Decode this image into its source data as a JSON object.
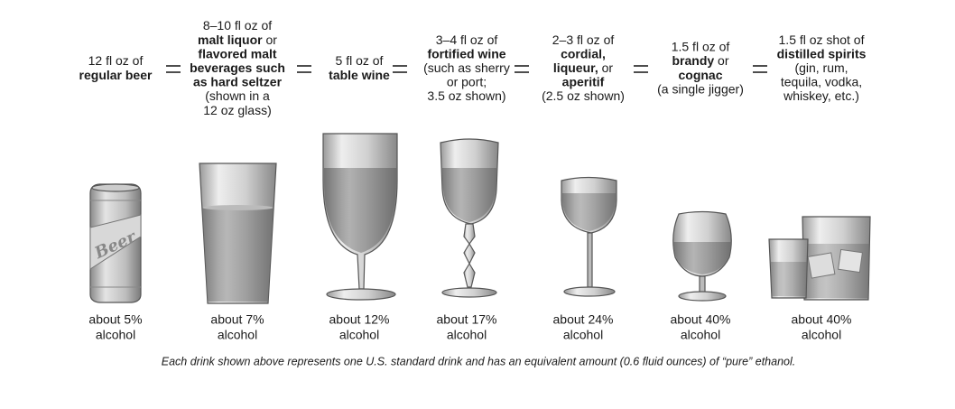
{
  "drinks": [
    {
      "description": [
        [
          {
            "text": "12 fl oz of",
            "bold": false
          }
        ],
        [
          {
            "text": "regular beer",
            "bold": true
          }
        ]
      ],
      "can_label": "Beer",
      "strength": [
        "about 5%",
        "alcohol"
      ]
    },
    {
      "description": [
        [
          {
            "text": "8–10 fl oz of",
            "bold": false
          }
        ],
        [
          {
            "text": "malt liquor",
            "bold": true
          },
          {
            "text": " or",
            "bold": false
          }
        ],
        [
          {
            "text": "flavored malt",
            "bold": true
          }
        ],
        [
          {
            "text": "beverages such",
            "bold": true
          }
        ],
        [
          {
            "text": "as hard seltzer",
            "bold": true
          }
        ],
        [
          {
            "text": "(shown in a",
            "bold": false
          }
        ],
        [
          {
            "text": "12 oz glass)",
            "bold": false
          }
        ]
      ],
      "strength": [
        "about 7%",
        "alcohol"
      ]
    },
    {
      "description": [
        [
          {
            "text": "5 fl oz of",
            "bold": false
          }
        ],
        [
          {
            "text": "table wine",
            "bold": true
          }
        ]
      ],
      "strength": [
        "about 12%",
        "alcohol"
      ]
    },
    {
      "description": [
        [
          {
            "text": "3–4 fl oz of",
            "bold": false
          }
        ],
        [
          {
            "text": "fortified wine",
            "bold": true
          }
        ],
        [
          {
            "text": "(such as sherry",
            "bold": false
          }
        ],
        [
          {
            "text": "or port;",
            "bold": false
          }
        ],
        [
          {
            "text": "3.5 oz shown)",
            "bold": false
          }
        ]
      ],
      "strength": [
        "about 17%",
        "alcohol"
      ]
    },
    {
      "description": [
        [
          {
            "text": "2–3 fl oz of",
            "bold": false
          }
        ],
        [
          {
            "text": "cordial,",
            "bold": true
          }
        ],
        [
          {
            "text": "liqueur,",
            "bold": true
          },
          {
            "text": " or",
            "bold": false
          }
        ],
        [
          {
            "text": "aperitif",
            "bold": true
          }
        ],
        [
          {
            "text": "(2.5 oz shown)",
            "bold": false
          }
        ]
      ],
      "strength": [
        "about 24%",
        "alcohol"
      ]
    },
    {
      "description": [
        [
          {
            "text": "1.5 fl oz of",
            "bold": false
          }
        ],
        [
          {
            "text": "brandy",
            "bold": true
          },
          {
            "text": " or",
            "bold": false
          }
        ],
        [
          {
            "text": "cognac",
            "bold": true
          }
        ],
        [
          {
            "text": "(a single jigger)",
            "bold": false
          }
        ]
      ],
      "strength": [
        "about 40%",
        "alcohol"
      ]
    },
    {
      "description": [
        [
          {
            "text": "1.5 fl oz shot of",
            "bold": false
          }
        ],
        [
          {
            "text": "distilled spirits",
            "bold": true
          }
        ],
        [
          {
            "text": "(gin, rum,",
            "bold": false
          }
        ],
        [
          {
            "text": "tequila, vodka,",
            "bold": false
          }
        ],
        [
          {
            "text": "whiskey, etc.)",
            "bold": false
          }
        ]
      ],
      "strength": [
        "about 40%",
        "alcohol"
      ]
    }
  ],
  "footnote": "Each drink shown above represents one U.S. standard drink and has an equivalent amount (0.6 fluid ounces) of “pure” ethanol."
}
